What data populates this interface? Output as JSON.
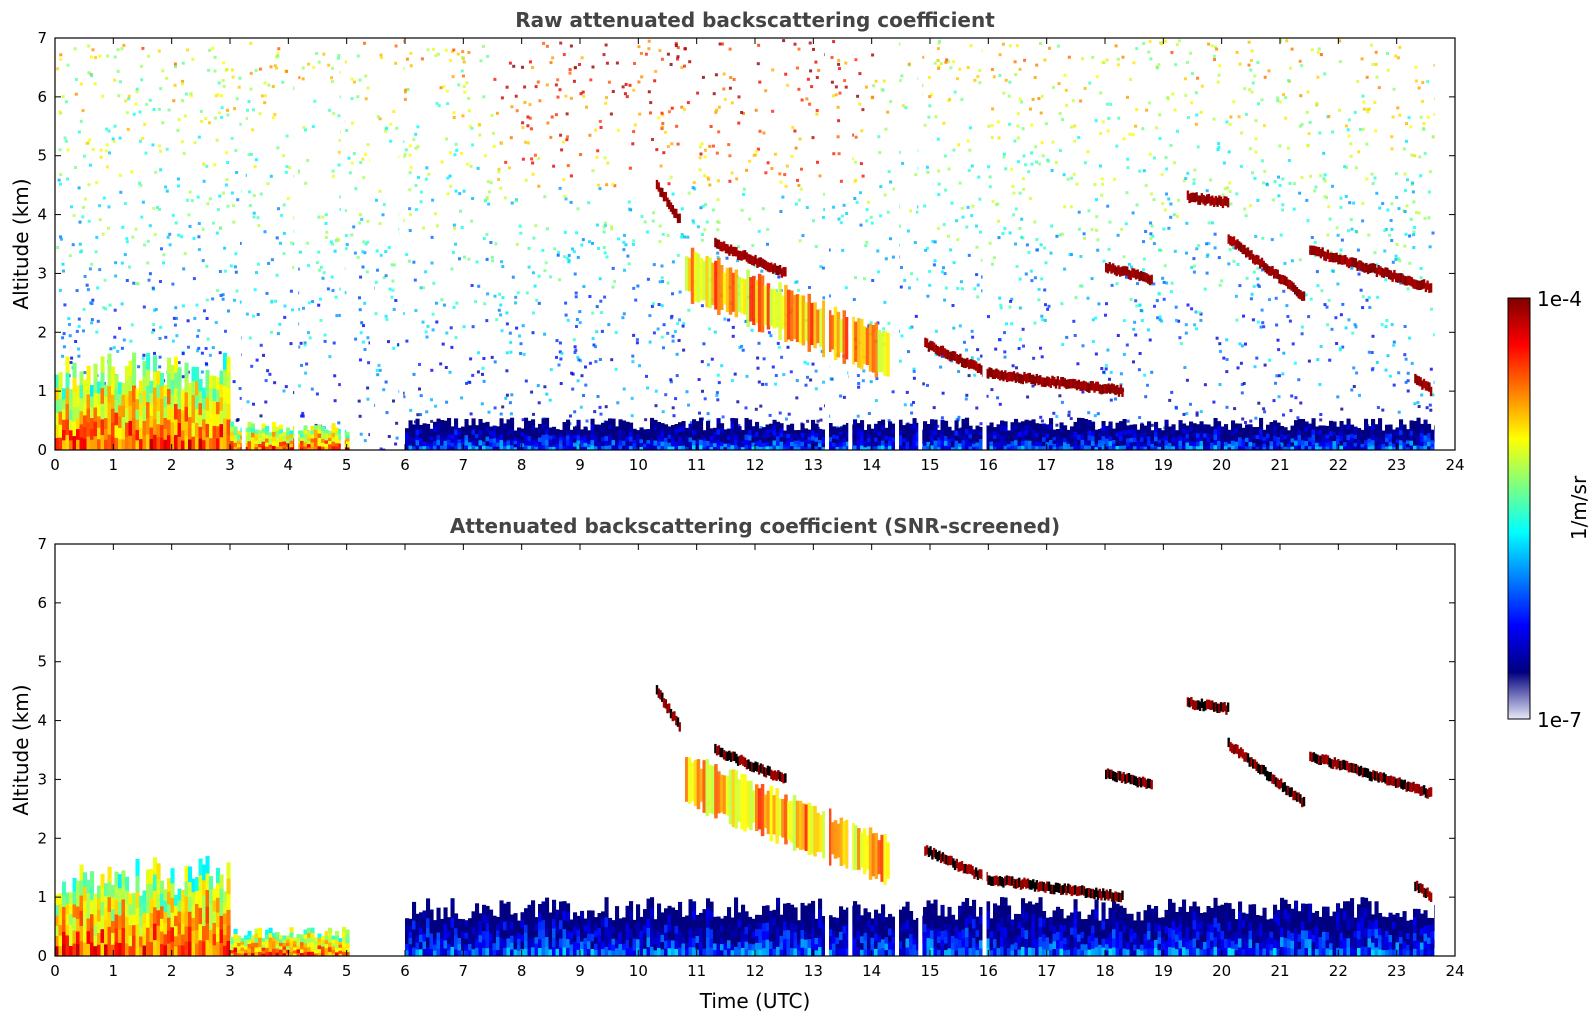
{
  "figure": {
    "units_label": "1/m/sr",
    "colorbar": {
      "label": "1/m/sr",
      "max_label": "1e-4",
      "min_label": "1e-7",
      "scale": "log",
      "vmin": 1e-07,
      "vmax": 0.0001,
      "colormap": "jet",
      "stops": [
        "#7f0000",
        "#ff0000",
        "#ff7f00",
        "#ffff00",
        "#7fff7f",
        "#00ffff",
        "#007fff",
        "#0000ff",
        "#00007f",
        "#e8e8f8"
      ]
    }
  },
  "chart_data": [
    {
      "type": "heatmap",
      "id": "raw",
      "title": "Raw attenuated backscattering coefficient",
      "xlabel": "",
      "ylabel": "Altitude (km)",
      "xlim": [
        0,
        24
      ],
      "ylim": [
        0,
        7
      ],
      "xticks": [
        "0",
        "1",
        "2",
        "3",
        "4",
        "5",
        "6",
        "7",
        "8",
        "9",
        "10",
        "11",
        "12",
        "13",
        "14",
        "15",
        "16",
        "17",
        "18",
        "19",
        "20",
        "21",
        "22",
        "23",
        "24"
      ],
      "yticks": [
        "0",
        "1",
        "2",
        "3",
        "4",
        "5",
        "6",
        "7"
      ],
      "data_end_time": 23.65,
      "noise_background": true,
      "boundary_layer": [
        {
          "t0": 0,
          "t1": 3.0,
          "top": 1.7,
          "intensity": "high"
        },
        {
          "t0": 3.0,
          "t1": 5.0,
          "top": 0.5,
          "intensity": "high"
        },
        {
          "t0": 6.0,
          "t1": 23.65,
          "top": 0.55,
          "intensity": "low"
        }
      ],
      "cloud_layers": [
        {
          "t0": 10.3,
          "t1": 10.7,
          "z0": 4.5,
          "z1": 3.9
        },
        {
          "t0": 11.3,
          "t1": 12.5,
          "z0": 3.5,
          "z1": 3.0
        },
        {
          "t0": 14.9,
          "t1": 16.0,
          "z0": 1.8,
          "z1": 1.3
        },
        {
          "t0": 16.0,
          "t1": 18.3,
          "z0": 1.3,
          "z1": 1.0
        },
        {
          "t0": 18.0,
          "t1": 18.8,
          "z0": 3.1,
          "z1": 2.9
        },
        {
          "t0": 19.4,
          "t1": 20.1,
          "z0": 4.3,
          "z1": 4.2
        },
        {
          "t0": 20.1,
          "t1": 21.4,
          "z0": 3.6,
          "z1": 2.6
        },
        {
          "t0": 21.5,
          "t1": 23.6,
          "z0": 3.4,
          "z1": 2.75
        },
        {
          "t0": 23.3,
          "t1": 23.6,
          "z0": 1.2,
          "z1": 1.0
        }
      ],
      "aerosol_layers": [
        {
          "t0": 10.8,
          "t1": 14.3,
          "z0": 3.0,
          "z1": 1.6
        }
      ],
      "gaps": [
        3.2,
        4.1,
        4.9,
        5.4,
        5.9,
        13.2,
        13.6,
        14.4,
        14.8,
        15.9
      ]
    },
    {
      "type": "heatmap",
      "id": "screened",
      "title": "Attenuated backscattering coefficient (SNR-screened)",
      "xlabel": "Time (UTC)",
      "ylabel": "Altitude (km)",
      "xlim": [
        0,
        24
      ],
      "ylim": [
        0,
        7
      ],
      "xticks": [
        "0",
        "1",
        "2",
        "3",
        "4",
        "5",
        "6",
        "7",
        "8",
        "9",
        "10",
        "11",
        "12",
        "13",
        "14",
        "15",
        "16",
        "17",
        "18",
        "19",
        "20",
        "21",
        "22",
        "23",
        "24"
      ],
      "yticks": [
        "0",
        "1",
        "2",
        "3",
        "4",
        "5",
        "6",
        "7"
      ],
      "data_end_time": 23.65,
      "noise_background": false,
      "boundary_layer": [
        {
          "t0": 0,
          "t1": 3.0,
          "top": 1.7,
          "intensity": "high"
        },
        {
          "t0": 3.0,
          "t1": 5.0,
          "top": 0.5,
          "intensity": "high"
        },
        {
          "t0": 6.0,
          "t1": 23.65,
          "top": 1.0,
          "intensity": "low"
        }
      ],
      "cloud_layers": [
        {
          "t0": 10.3,
          "t1": 10.7,
          "z0": 4.5,
          "z1": 3.9
        },
        {
          "t0": 11.3,
          "t1": 12.5,
          "z0": 3.5,
          "z1": 3.0
        },
        {
          "t0": 14.9,
          "t1": 16.0,
          "z0": 1.8,
          "z1": 1.3
        },
        {
          "t0": 16.0,
          "t1": 18.3,
          "z0": 1.3,
          "z1": 1.0
        },
        {
          "t0": 18.0,
          "t1": 18.8,
          "z0": 3.1,
          "z1": 2.9
        },
        {
          "t0": 19.4,
          "t1": 20.1,
          "z0": 4.3,
          "z1": 4.2
        },
        {
          "t0": 20.1,
          "t1": 21.4,
          "z0": 3.6,
          "z1": 2.6
        },
        {
          "t0": 21.5,
          "t1": 23.6,
          "z0": 3.4,
          "z1": 2.75
        },
        {
          "t0": 23.3,
          "t1": 23.6,
          "z0": 1.2,
          "z1": 1.0
        }
      ],
      "aerosol_layers": [
        {
          "t0": 10.8,
          "t1": 14.3,
          "z0": 3.0,
          "z1": 1.6
        }
      ],
      "gaps": [
        13.2,
        13.6,
        14.4,
        14.8,
        15.9
      ]
    }
  ]
}
